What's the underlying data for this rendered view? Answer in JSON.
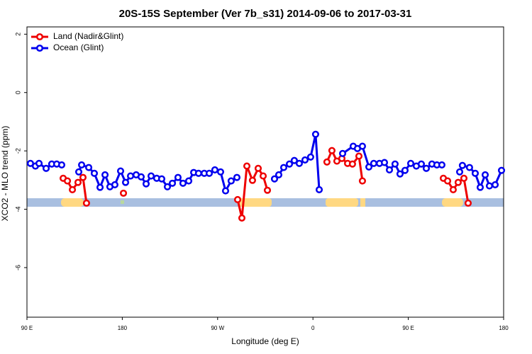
{
  "chart_data": {
    "type": "line",
    "title": "20S-15S September (Ver 7b_s31)   2014-09-06 to 2017-03-31",
    "xlabel": "Longitude (deg E)",
    "ylabel": "XCO2 - MLO trend (ppm)",
    "xlim": [
      90,
      540
    ],
    "ylim": [
      -7.7,
      2.25
    ],
    "xticks": [
      {
        "value": 90,
        "label": "90 E"
      },
      180,
      {
        "value": 270,
        "label": "90 W"
      },
      {
        "value": 360,
        "label": "0"
      },
      {
        "value": 450,
        "label": "90 E"
      },
      {
        "value": 540,
        "label": "180"
      }
    ],
    "yticks": [
      2,
      0,
      -2,
      -4,
      -6
    ],
    "legend": "upper left",
    "series": [
      {
        "name": "Land (Nadir&Glint)",
        "color": "#ee0000",
        "x": [
          124.2,
          128.2,
          132.9,
          138.2,
          142.9,
          146.2,
          null,
          181.1,
          null,
          288.9,
          292.9,
          297.6,
          302.9,
          308.3,
          313.0,
          317.0,
          null,
          373.2,
          377.9,
          382.6,
          387.3,
          392.7,
          397.3,
          403.4,
          406.7,
          null,
          483.1,
          487.1,
          492.4,
          497.1,
          502.5,
          506.5
        ],
        "values": [
          -2.94,
          -3.03,
          -3.33,
          -3.08,
          -2.91,
          -3.79,
          null,
          -3.45,
          null,
          -3.67,
          -4.3,
          -2.52,
          -3.01,
          -2.6,
          -2.86,
          -3.35,
          null,
          -2.38,
          -1.99,
          -2.35,
          -2.26,
          -2.43,
          -2.45,
          -2.18,
          -3.03,
          null,
          -2.94,
          -3.03,
          -3.33,
          -3.08,
          -2.94,
          -3.79
        ]
      },
      {
        "name": "Ocean (Glint)",
        "color": "#0000ee",
        "x": [
          93.3,
          98.0,
          101.4,
          108.1,
          113.4,
          118.1,
          122.8,
          null,
          138.9,
          141.6,
          148.3,
          153.6,
          159.0,
          163.7,
          168.3,
          173.0,
          178.4,
          183.1,
          187.8,
          193.1,
          197.8,
          202.5,
          207.2,
          212.5,
          217.2,
          222.6,
          227.3,
          232.6,
          237.3,
          242.7,
          247.4,
          252.0,
          257.4,
          262.1,
          267.4,
          272.8,
          277.5,
          282.8,
          288.2,
          null,
          323.7,
          327.7,
          332.4,
          337.8,
          342.4,
          347.1,
          352.5,
          357.8,
          362.5,
          365.9,
          null,
          388.0,
          398.0,
          402.0,
          406.7,
          412.8,
          417.4,
          422.8,
          427.5,
          432.2,
          437.5,
          442.2,
          446.9,
          452.3,
          457.6,
          462.3,
          467.0,
          472.3,
          477.0,
          481.7,
          null,
          498.5,
          501.1,
          507.8,
          513.2,
          517.9,
          522.6,
          526.6,
          532.0,
          538.0
        ],
        "values": [
          -2.43,
          -2.52,
          -2.43,
          -2.6,
          -2.45,
          -2.45,
          -2.48,
          null,
          -2.72,
          -2.48,
          -2.57,
          -2.77,
          -3.25,
          -2.82,
          -3.23,
          -3.16,
          -2.69,
          -3.08,
          -2.86,
          -2.82,
          -2.89,
          -3.13,
          -2.86,
          -2.94,
          -2.96,
          -3.23,
          -3.11,
          -2.91,
          -3.11,
          -3.03,
          -2.74,
          -2.77,
          -2.77,
          -2.77,
          -2.65,
          -2.72,
          -3.37,
          -3.03,
          -2.91,
          null,
          -2.96,
          -2.82,
          -2.57,
          -2.45,
          -2.33,
          -2.43,
          -2.31,
          -2.21,
          -1.43,
          -3.33,
          null,
          -2.09,
          -1.84,
          -1.92,
          -1.84,
          -2.55,
          -2.43,
          -2.43,
          -2.4,
          -2.65,
          -2.45,
          -2.79,
          -2.67,
          -2.43,
          -2.52,
          -2.45,
          -2.6,
          -2.45,
          -2.48,
          -2.48,
          null,
          -2.72,
          -2.5,
          -2.57,
          -2.77,
          -3.25,
          -2.82,
          -3.2,
          -3.16,
          -2.67
        ]
      }
    ]
  }
}
